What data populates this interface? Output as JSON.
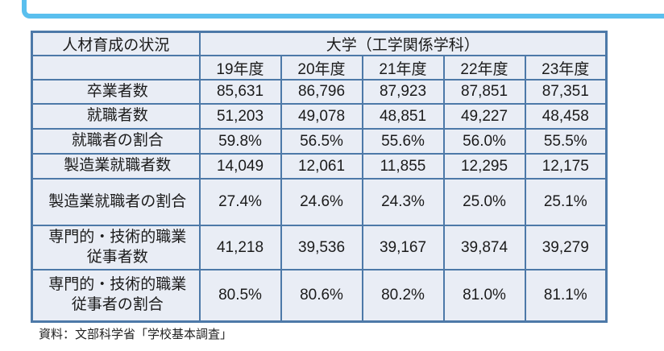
{
  "colors": {
    "callout_border": "#5abfee",
    "table_border": "#4d79a8",
    "cell_background": "#e9edf5",
    "text": "#1b1b1b"
  },
  "table": {
    "corner_header": "人材育成の状況",
    "group_header": "大学（工学関係学科）",
    "year_headers": [
      "19年度",
      "20年度",
      "21年度",
      "22年度",
      "23年度"
    ],
    "rows": [
      {
        "label": "卒業者数",
        "values": [
          "85,631",
          "86,796",
          "87,923",
          "87,851",
          "87,351"
        ]
      },
      {
        "label": "就職者数",
        "values": [
          "51,203",
          "49,078",
          "48,851",
          "49,227",
          "48,458"
        ]
      },
      {
        "label": "就職者の割合",
        "values": [
          "59.8%",
          "56.5%",
          "55.6%",
          "56.0%",
          "55.5%"
        ]
      },
      {
        "label": "製造業就職者数",
        "values": [
          "14,049",
          "12,061",
          "11,855",
          "12,295",
          "12,175"
        ]
      },
      {
        "label": "製造業就職者の割合",
        "values": [
          "27.4%",
          "24.6%",
          "24.3%",
          "25.0%",
          "25.1%"
        ]
      },
      {
        "label": "専門的・技術的職業\n従事者数",
        "values": [
          "41,218",
          "39,536",
          "39,167",
          "39,874",
          "39,279"
        ]
      },
      {
        "label": "専門的・技術的職業\n従事者の割合",
        "values": [
          "80.5%",
          "80.6%",
          "80.2%",
          "81.0%",
          "81.1%"
        ]
      }
    ]
  },
  "footer": {
    "source_note": "資料：文部科学省「学校基本調査」"
  }
}
